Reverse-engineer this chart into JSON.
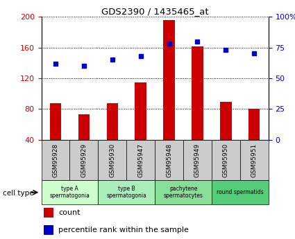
{
  "title": "GDS2390 / 1435465_at",
  "samples": [
    "GSM95928",
    "GSM95929",
    "GSM95930",
    "GSM95947",
    "GSM95948",
    "GSM95949",
    "GSM95950",
    "GSM95951"
  ],
  "counts": [
    88,
    73,
    88,
    115,
    196,
    161,
    89,
    80
  ],
  "percentile_ranks": [
    62,
    60,
    65,
    68,
    78,
    80,
    73,
    70
  ],
  "ylim_left": [
    40,
    200
  ],
  "ylim_right": [
    0,
    100
  ],
  "yticks_left": [
    40,
    80,
    120,
    160,
    200
  ],
  "ytick_labels_left": [
    "40",
    "80",
    "120",
    "160",
    "200"
  ],
  "yticks_right": [
    0,
    25,
    50,
    75,
    100
  ],
  "ytick_labels_right": [
    "0",
    "25",
    "50",
    "75",
    "100%"
  ],
  "bar_color": "#cc0000",
  "dot_color": "#0000cc",
  "cell_types": [
    {
      "label": "type A\nspermatogonia",
      "start": 0,
      "end": 2,
      "color": "#ccffcc"
    },
    {
      "label": "type B\nspermatogonia",
      "start": 2,
      "end": 4,
      "color": "#aaeebb"
    },
    {
      "label": "pachytene\nspermatocytes",
      "start": 4,
      "end": 6,
      "color": "#88dd99"
    },
    {
      "label": "round spermatids",
      "start": 6,
      "end": 8,
      "color": "#55cc77"
    }
  ],
  "sample_box_color": "#cccccc",
  "cell_type_label": "cell type",
  "legend_count_label": "count",
  "legend_pct_label": "percentile rank within the sample"
}
